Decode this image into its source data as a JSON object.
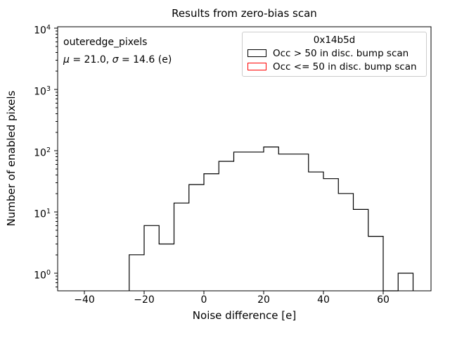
{
  "figure": {
    "title": "Results from zero-bias scan",
    "xlabel": "Noise difference [e]",
    "ylabel": "Number of enabled pixels"
  },
  "annotation": {
    "dataset": "outeredge_pixels",
    "mu_symbol": "μ",
    "mu_rest": " = 21.0, ",
    "sigma_symbol": "σ",
    "sigma_rest": " = 14.6 (e)"
  },
  "legend": {
    "title": "0x14b5d",
    "entries": [
      {
        "label": "Occ > 50 in disc. bump scan",
        "color": "#000000"
      },
      {
        "label": "Occ <= 50 in disc. bump scan",
        "color": "#ff0000"
      }
    ]
  },
  "chart_data": {
    "type": "histogram-step",
    "title": "Results from zero-bias scan",
    "xlabel": "Noise difference [e]",
    "ylabel": "Number of enabled pixels",
    "x_axis": {
      "lim": [
        -48.9,
        76.0
      ],
      "ticks": [
        -40,
        -20,
        0,
        20,
        40,
        60
      ],
      "tick_labels": [
        "−40",
        "−20",
        "0",
        "20",
        "40",
        "60"
      ]
    },
    "y_axis": {
      "scale": "log",
      "lim": [
        0.52,
        10500
      ],
      "ticks": [
        {
          "base": "10",
          "exp": "0"
        },
        {
          "base": "10",
          "exp": "1"
        },
        {
          "base": "10",
          "exp": "2"
        },
        {
          "base": "10",
          "exp": "3"
        },
        {
          "base": "10",
          "exp": "4"
        }
      ]
    },
    "series": [
      {
        "name": "Occ > 50 in disc. bump scan",
        "color": "#000000",
        "bin_edges": [
          -25,
          -20,
          -15,
          -10,
          -5,
          0,
          5,
          10,
          15,
          20,
          25,
          30,
          35,
          40,
          45,
          50,
          55,
          60,
          65,
          70
        ],
        "counts": [
          2,
          6,
          3,
          14,
          28,
          42,
          67,
          95,
          95,
          115,
          88,
          88,
          45,
          35,
          20,
          11,
          4,
          0,
          1
        ]
      },
      {
        "name": "Occ <= 50 in disc. bump scan",
        "color": "#ff0000",
        "bin_edges": [],
        "counts": []
      }
    ],
    "stats": {
      "mu": 21.0,
      "sigma": 14.6
    },
    "legend_position": "upper right",
    "grid": false
  }
}
